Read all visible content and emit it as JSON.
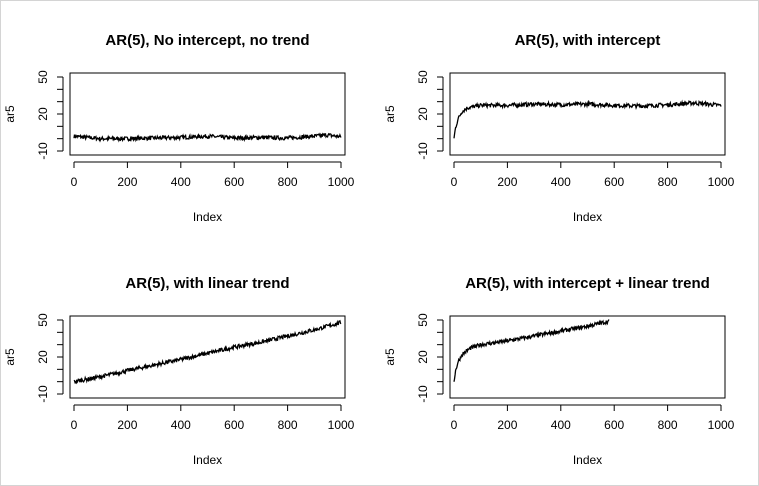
{
  "chart_data": [
    {
      "type": "line",
      "title": "AR(5), No intercept, no trend",
      "xlabel": "Index",
      "ylabel": "ar5",
      "xlim": [
        0,
        1000
      ],
      "ylim": [
        -10,
        50
      ],
      "xticks": [
        "0",
        "200",
        "400",
        "600",
        "800",
        "1000"
      ],
      "yticks": [
        "-10",
        "20",
        "50"
      ],
      "series": [
        {
          "x": [
            0,
            100,
            200,
            300,
            400,
            500,
            600,
            700,
            800,
            900,
            950,
            1000
          ],
          "values": [
            2,
            0,
            0,
            0.5,
            1,
            2,
            0.5,
            1,
            0.5,
            2,
            3,
            1.5
          ]
        }
      ]
    },
    {
      "type": "line",
      "title": "AR(5), with intercept",
      "xlabel": "Index",
      "ylabel": "ar5",
      "xlim": [
        0,
        1000
      ],
      "ylim": [
        -10,
        50
      ],
      "xticks": [
        "0",
        "200",
        "400",
        "600",
        "800",
        "1000"
      ],
      "yticks": [
        "-10",
        "20",
        "50"
      ],
      "series": [
        {
          "x": [
            0,
            5,
            15,
            30,
            50,
            100,
            200,
            300,
            400,
            500,
            600,
            700,
            800,
            900,
            1000
          ],
          "values": [
            0,
            8,
            16,
            22,
            25,
            27,
            27,
            28,
            27.5,
            28,
            27,
            26.5,
            27.5,
            29,
            27
          ]
        }
      ]
    },
    {
      "type": "line",
      "title": "AR(5), with linear trend",
      "xlabel": "Index",
      "ylabel": "ar5",
      "xlim": [
        0,
        1000
      ],
      "ylim": [
        -10,
        50
      ],
      "xticks": [
        "0",
        "200",
        "400",
        "600",
        "800",
        "1000"
      ],
      "yticks": [
        "-10",
        "20",
        "50"
      ],
      "series": [
        {
          "x": [
            0,
            100,
            200,
            300,
            400,
            500,
            600,
            700,
            800,
            900,
            1000
          ],
          "values": [
            0,
            4,
            9,
            13.5,
            18,
            23,
            28,
            32,
            37,
            42,
            48
          ]
        }
      ]
    },
    {
      "type": "line",
      "title": "AR(5), with intercept + linear trend",
      "xlabel": "Index",
      "ylabel": "ar5",
      "xlim": [
        0,
        1000
      ],
      "ylim": [
        -10,
        50
      ],
      "xticks": [
        "0",
        "200",
        "400",
        "600",
        "800",
        "1000"
      ],
      "yticks": [
        "-10",
        "20",
        "50"
      ],
      "series": [
        {
          "x": [
            0,
            5,
            15,
            30,
            60,
            100,
            200,
            300,
            400,
            500,
            580
          ],
          "values": [
            0,
            8,
            16,
            22,
            27,
            30,
            33,
            37,
            41,
            45,
            49
          ]
        }
      ]
    }
  ]
}
